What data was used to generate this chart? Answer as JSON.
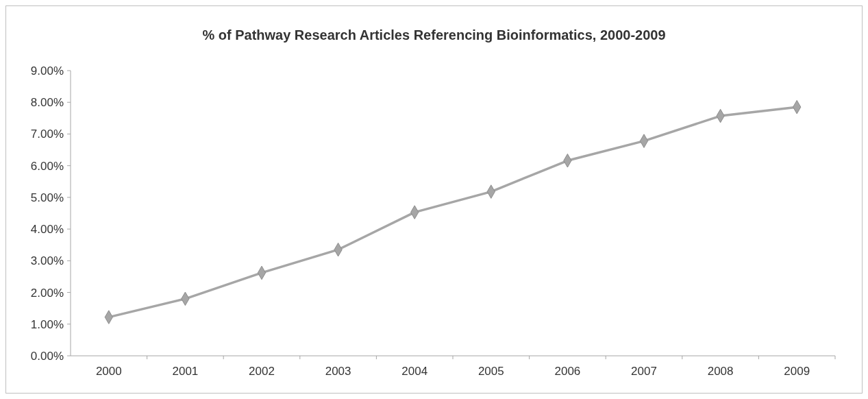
{
  "chart_data": {
    "type": "line",
    "title": "% of Pathway Research Articles Referencing Bioinformatics, 2000-2009",
    "categories": [
      "2000",
      "2001",
      "2002",
      "2003",
      "2004",
      "2005",
      "2006",
      "2007",
      "2008",
      "2009"
    ],
    "series": [
      {
        "color": "#a6a6a6",
        "values": [
          1.22,
          1.8,
          2.62,
          3.35,
          4.53,
          5.18,
          6.16,
          6.78,
          7.57,
          7.85
        ]
      }
    ],
    "ylim": [
      0,
      9
    ],
    "yticks": [
      {
        "value": 0,
        "label": "0.00%"
      },
      {
        "value": 1,
        "label": "1.00%"
      },
      {
        "value": 2,
        "label": "2.00%"
      },
      {
        "value": 3,
        "label": "3.00%"
      },
      {
        "value": 4,
        "label": "4.00%"
      },
      {
        "value": 5,
        "label": "5.00%"
      },
      {
        "value": 6,
        "label": "6.00%"
      },
      {
        "value": 7,
        "label": "7.00%"
      },
      {
        "value": 8,
        "label": "8.00%"
      },
      {
        "value": 9,
        "label": "9.00%"
      }
    ],
    "grid": false,
    "marker": "diamond",
    "line_style": "solid"
  }
}
